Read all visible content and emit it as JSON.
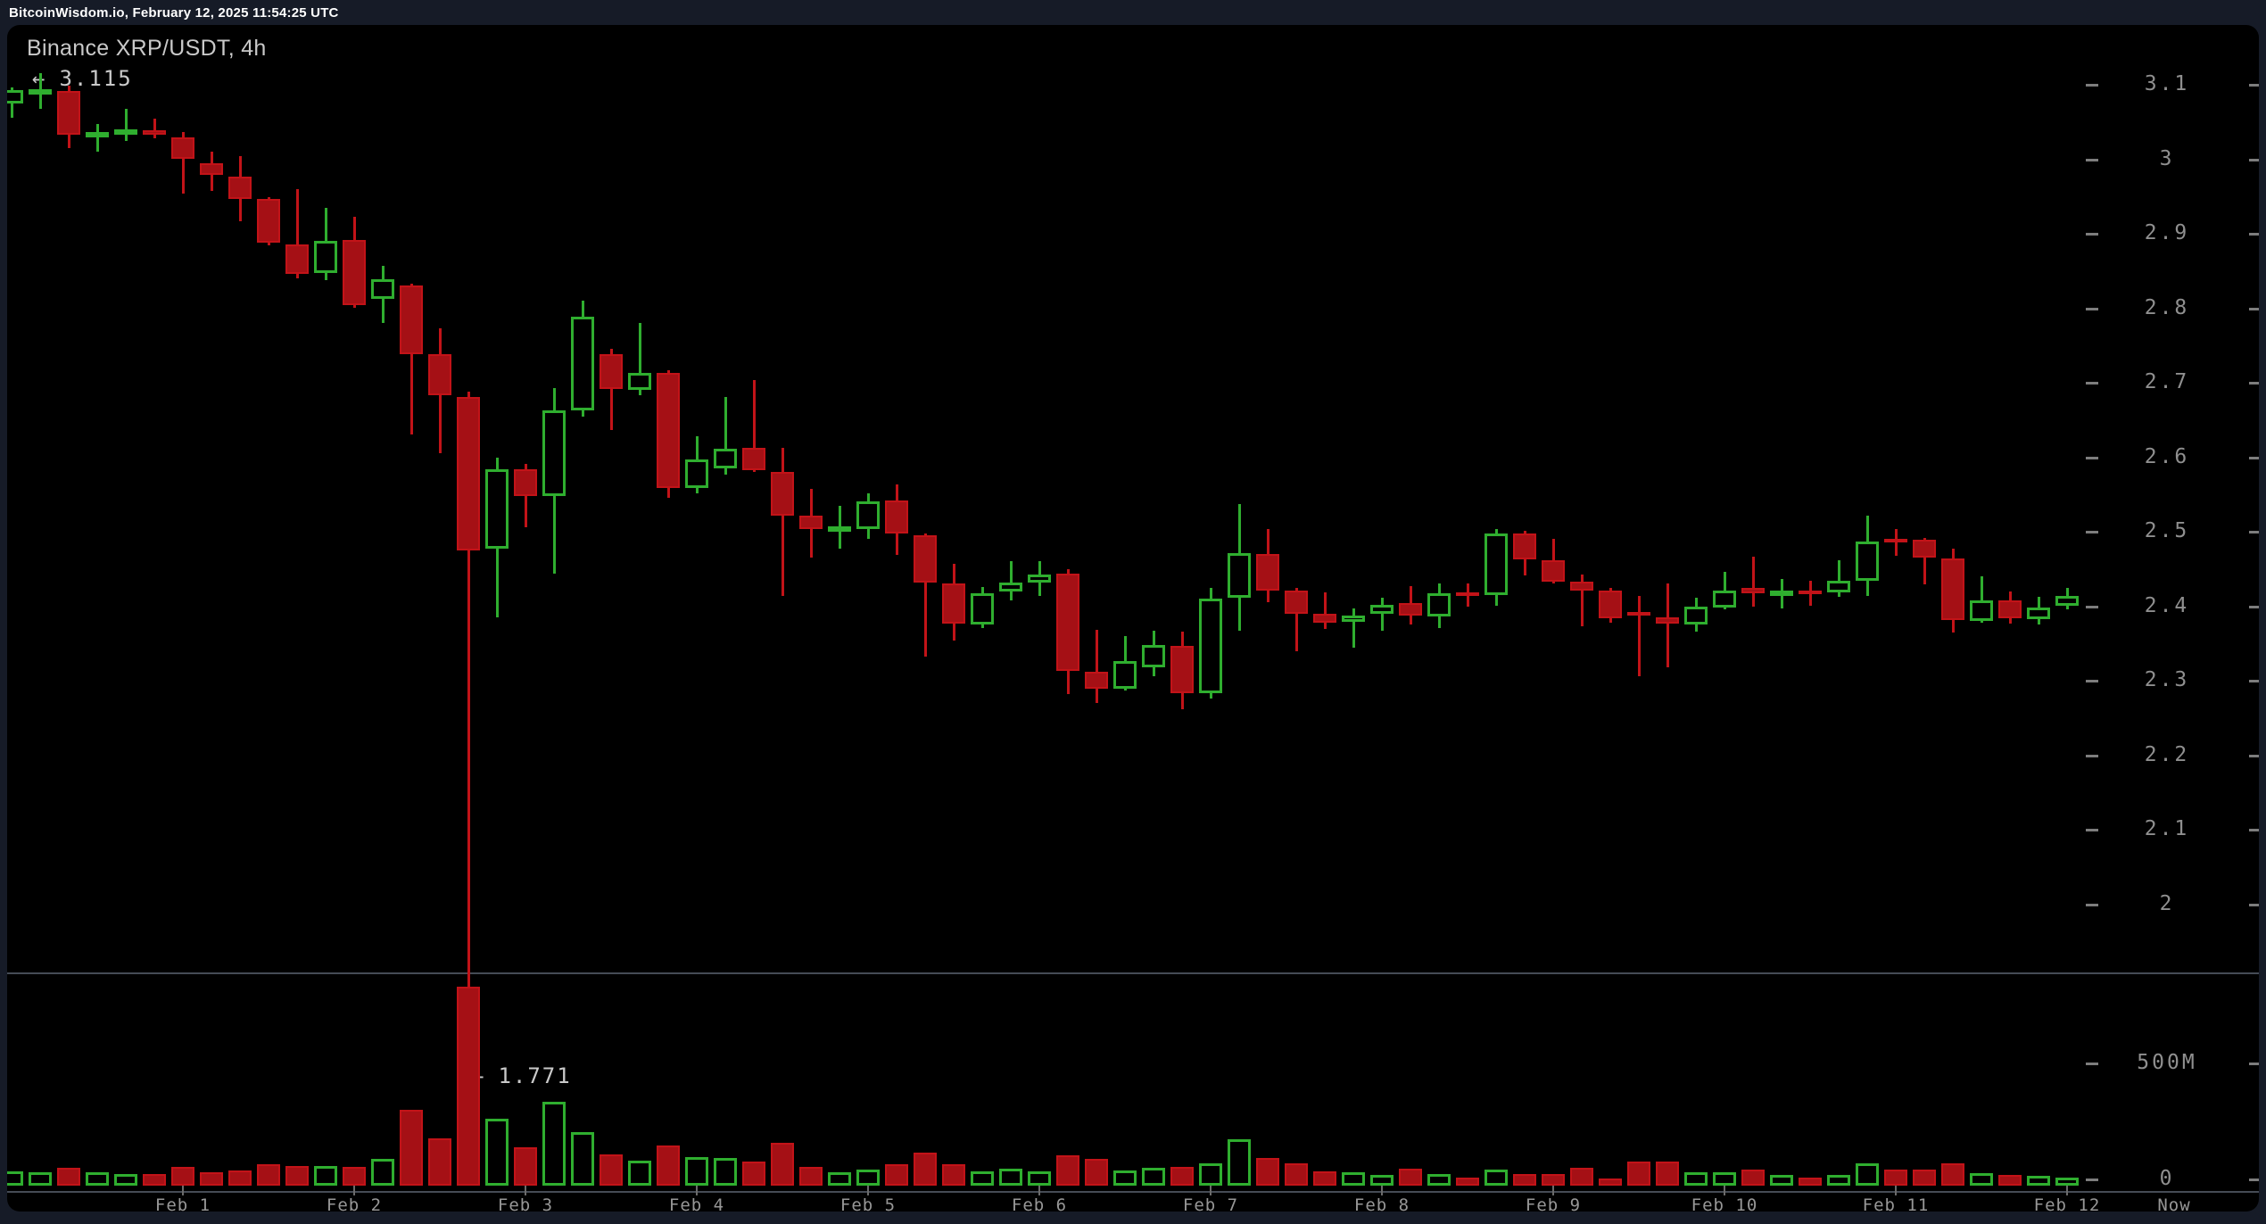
{
  "header": {
    "site_and_time": "BitcoinWisdom.io, February 12, 2025 11:54:25 UTC"
  },
  "chart": {
    "title": "Binance XRP/USDT, 4h",
    "annotations": {
      "session_high": {
        "arrow": "←",
        "value": "3.115"
      },
      "session_low": {
        "arrow": "←",
        "value": "1.771"
      }
    },
    "price_axis": {
      "labels": [
        {
          "text": "3.1",
          "value": 3.1
        },
        {
          "text": "3",
          "value": 3.0
        },
        {
          "text": "2.9",
          "value": 2.9
        },
        {
          "text": "2.8",
          "value": 2.8
        },
        {
          "text": "2.7",
          "value": 2.7
        },
        {
          "text": "2.6",
          "value": 2.6
        },
        {
          "text": "2.5",
          "value": 2.5
        },
        {
          "text": "2.4",
          "value": 2.4
        },
        {
          "text": "2.3",
          "value": 2.3
        },
        {
          "text": "2.2",
          "value": 2.2
        },
        {
          "text": "2.1",
          "value": 2.1
        },
        {
          "text": "2",
          "value": 2.0
        }
      ]
    },
    "volume_axis": {
      "labels": [
        {
          "text": "500M",
          "value": 500
        },
        {
          "text": "0",
          "value": 0
        }
      ]
    },
    "time_axis": {
      "days": [
        "Feb 1",
        "Feb 2",
        "Feb 3",
        "Feb 4",
        "Feb 5",
        "Feb 6",
        "Feb 7",
        "Feb 8",
        "Feb 9",
        "Feb 10",
        "Feb 11",
        "Feb 12"
      ],
      "now_label": "Now"
    }
  },
  "chart_data": {
    "type": "candlestick",
    "exchange": "Binance",
    "symbol": "XRP/USDT",
    "interval": "4h",
    "title": "Binance XRP/USDT, 4h",
    "first_candle": "Jan 31 00:00 UTC",
    "candle_hours": 4,
    "price_axis_range": [
      2.0,
      3.1
    ],
    "session_high": 3.115,
    "session_low": 1.771,
    "volume_unit": "millions",
    "volume_axis_max_label": 500,
    "candles_ohlcv": [
      [
        3.075,
        3.097,
        3.056,
        3.093,
        58
      ],
      [
        3.09,
        3.115,
        3.068,
        3.094,
        55
      ],
      [
        3.092,
        3.099,
        3.015,
        3.033,
        73
      ],
      [
        3.03,
        3.047,
        3.01,
        3.037,
        55
      ],
      [
        3.034,
        3.068,
        3.025,
        3.04,
        47
      ],
      [
        3.039,
        3.054,
        3.028,
        3.033,
        47
      ],
      [
        3.029,
        3.036,
        2.954,
        3.001,
        77
      ],
      [
        2.995,
        3.01,
        2.958,
        2.979,
        55
      ],
      [
        2.977,
        3.004,
        2.917,
        2.947,
        62
      ],
      [
        2.947,
        2.949,
        2.884,
        2.888,
        88
      ],
      [
        2.886,
        2.96,
        2.84,
        2.846,
        80
      ],
      [
        2.847,
        2.935,
        2.838,
        2.89,
        80
      ],
      [
        2.892,
        2.923,
        2.801,
        2.804,
        77
      ],
      [
        2.813,
        2.857,
        2.78,
        2.839,
        110
      ],
      [
        2.831,
        2.833,
        2.63,
        2.738,
        310
      ],
      [
        2.738,
        2.773,
        2.605,
        2.683,
        193
      ],
      [
        2.681,
        2.688,
        1.771,
        2.475,
        814
      ],
      [
        2.477,
        2.599,
        2.385,
        2.584,
        274
      ],
      [
        2.584,
        2.591,
        2.506,
        2.548,
        157
      ],
      [
        2.548,
        2.693,
        2.444,
        2.663,
        343
      ],
      [
        2.663,
        2.81,
        2.655,
        2.789,
        219
      ],
      [
        2.738,
        2.745,
        2.636,
        2.692,
        128
      ],
      [
        2.69,
        2.78,
        2.683,
        2.713,
        102
      ],
      [
        2.713,
        2.717,
        2.545,
        2.559,
        164
      ],
      [
        2.559,
        2.628,
        2.552,
        2.597,
        117
      ],
      [
        2.585,
        2.681,
        2.577,
        2.611,
        113
      ],
      [
        2.613,
        2.704,
        2.58,
        2.583,
        99
      ],
      [
        2.58,
        2.613,
        2.414,
        2.522,
        175
      ],
      [
        2.522,
        2.558,
        2.465,
        2.504,
        77
      ],
      [
        2.501,
        2.535,
        2.477,
        2.507,
        55
      ],
      [
        2.504,
        2.552,
        2.491,
        2.541,
        66
      ],
      [
        2.542,
        2.563,
        2.469,
        2.498,
        88
      ],
      [
        2.495,
        2.498,
        2.332,
        2.432,
        135
      ],
      [
        2.431,
        2.457,
        2.354,
        2.377,
        88
      ],
      [
        2.375,
        2.426,
        2.371,
        2.417,
        58
      ],
      [
        2.42,
        2.46,
        2.408,
        2.432,
        69
      ],
      [
        2.432,
        2.461,
        2.414,
        2.443,
        58
      ],
      [
        2.444,
        2.45,
        2.282,
        2.313,
        124
      ],
      [
        2.312,
        2.368,
        2.27,
        2.289,
        110
      ],
      [
        2.289,
        2.36,
        2.287,
        2.326,
        62
      ],
      [
        2.318,
        2.367,
        2.306,
        2.348,
        73
      ],
      [
        2.347,
        2.366,
        2.262,
        2.283,
        77
      ],
      [
        2.283,
        2.425,
        2.276,
        2.41,
        91
      ],
      [
        2.411,
        2.537,
        2.367,
        2.471,
        190
      ],
      [
        2.47,
        2.503,
        2.405,
        2.421,
        113
      ],
      [
        2.421,
        2.425,
        2.339,
        2.39,
        91
      ],
      [
        2.39,
        2.418,
        2.369,
        2.378,
        58
      ],
      [
        2.379,
        2.397,
        2.344,
        2.387,
        55
      ],
      [
        2.39,
        2.411,
        2.367,
        2.402,
        44
      ],
      [
        2.404,
        2.427,
        2.376,
        2.387,
        69
      ],
      [
        2.386,
        2.43,
        2.371,
        2.417,
        47
      ],
      [
        2.419,
        2.43,
        2.399,
        2.414,
        33
      ],
      [
        2.415,
        2.503,
        2.4,
        2.498,
        66
      ],
      [
        2.498,
        2.501,
        2.441,
        2.463,
        47
      ],
      [
        2.462,
        2.491,
        2.431,
        2.433,
        47
      ],
      [
        2.433,
        2.443,
        2.373,
        2.421,
        73
      ],
      [
        2.421,
        2.424,
        2.378,
        2.384,
        29
      ],
      [
        2.392,
        2.414,
        2.306,
        2.389,
        99
      ],
      [
        2.385,
        2.431,
        2.318,
        2.377,
        99
      ],
      [
        2.375,
        2.411,
        2.366,
        2.399,
        55
      ],
      [
        2.398,
        2.446,
        2.396,
        2.421,
        55
      ],
      [
        2.424,
        2.466,
        2.399,
        2.417,
        66
      ],
      [
        2.418,
        2.437,
        2.397,
        2.421,
        44
      ],
      [
        2.421,
        2.434,
        2.4,
        2.418,
        33
      ],
      [
        2.419,
        2.462,
        2.413,
        2.434,
        44
      ],
      [
        2.434,
        2.521,
        2.414,
        2.487,
        91
      ],
      [
        2.491,
        2.503,
        2.468,
        2.487,
        66
      ],
      [
        2.489,
        2.492,
        2.429,
        2.465,
        66
      ],
      [
        2.464,
        2.477,
        2.365,
        2.381,
        91
      ],
      [
        2.38,
        2.44,
        2.378,
        2.408,
        51
      ],
      [
        2.408,
        2.42,
        2.377,
        2.384,
        44
      ],
      [
        2.383,
        2.413,
        2.375,
        2.398,
        40
      ],
      [
        2.4,
        2.425,
        2.396,
        2.414,
        33
      ]
    ]
  },
  "colors": {
    "up_green": "#2fae2f",
    "down_red_fill": "#a51015",
    "down_red_stroke": "#c21318",
    "background": "#000000",
    "frame": "#161b27",
    "title_text": "#c9c9c9",
    "axis_text": "#8f8f8f",
    "grid_line": "#454b55"
  }
}
